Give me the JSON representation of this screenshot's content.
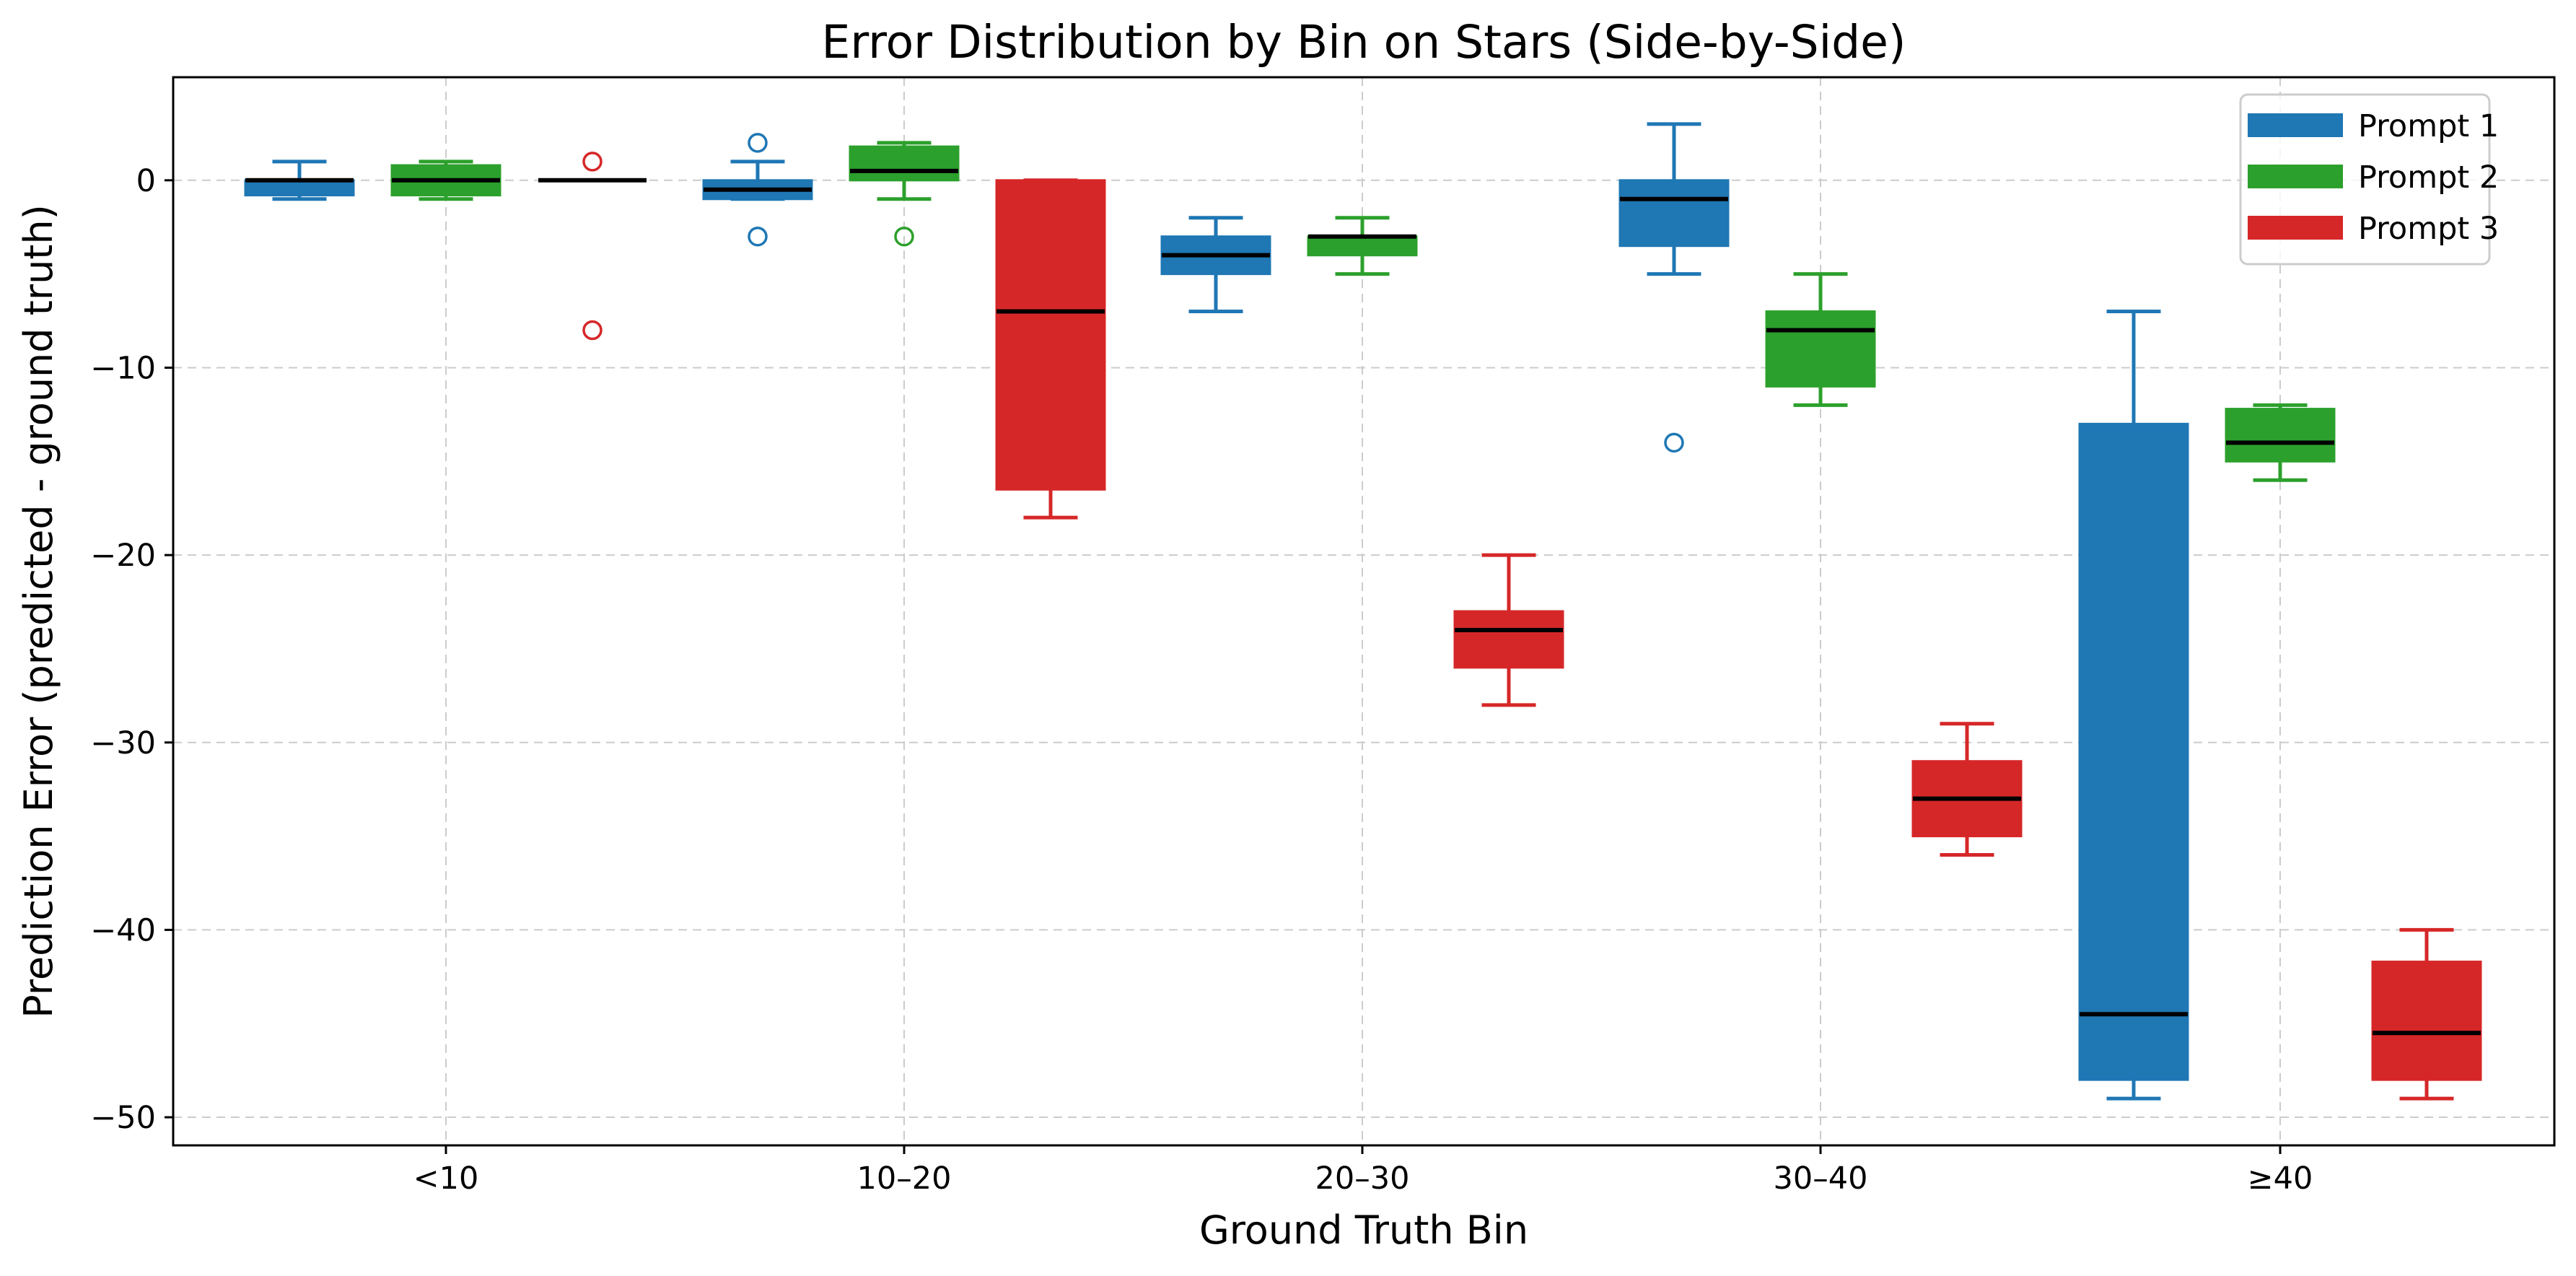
{
  "chart_data": {
    "type": "box",
    "title": "Error Distribution by Bin on Stars (Side-by-Side)",
    "xlabel": "Ground Truth Bin",
    "ylabel": "Prediction Error (predicted - ground truth)",
    "ylim": [
      -51.5,
      5.5
    ],
    "yticks": [
      0,
      -10,
      -20,
      -30,
      -40,
      -50
    ],
    "ytick_labels": [
      "0",
      "−10",
      "−20",
      "−30",
      "−40",
      "−50"
    ],
    "categories": [
      "<10",
      "10–20",
      "20–30",
      "30–40",
      "≥40"
    ],
    "grid": true,
    "legend_position": "top-right",
    "series": [
      {
        "name": "Prompt 1",
        "color": "#1f77b4",
        "boxes": [
          {
            "whisker_low": -1,
            "q1": -0.8,
            "median": 0,
            "q3": 0,
            "whisker_high": 1,
            "outliers": []
          },
          {
            "whisker_low": -1,
            "q1": -1,
            "median": -0.5,
            "q3": 0,
            "whisker_high": 1,
            "outliers": [
              2,
              -3
            ]
          },
          {
            "whisker_low": -7,
            "q1": -5,
            "median": -4,
            "q3": -3,
            "whisker_high": -2,
            "outliers": []
          },
          {
            "whisker_low": -5,
            "q1": -3.5,
            "median": -1,
            "q3": 0,
            "whisker_high": 3,
            "outliers": [
              -14
            ]
          },
          {
            "whisker_low": -49,
            "q1": -48,
            "median": -44.5,
            "q3": -13,
            "whisker_high": -7,
            "outliers": []
          }
        ]
      },
      {
        "name": "Prompt 2",
        "color": "#2ca02c",
        "boxes": [
          {
            "whisker_low": -1,
            "q1": -0.8,
            "median": 0,
            "q3": 0.8,
            "whisker_high": 1,
            "outliers": []
          },
          {
            "whisker_low": -1,
            "q1": 0,
            "median": 0.5,
            "q3": 1.8,
            "whisker_high": 2,
            "outliers": [
              -3
            ]
          },
          {
            "whisker_low": -5,
            "q1": -4,
            "median": -3,
            "q3": -3,
            "whisker_high": -2,
            "outliers": []
          },
          {
            "whisker_low": -12,
            "q1": -11,
            "median": -8,
            "q3": -7,
            "whisker_high": -5,
            "outliers": []
          },
          {
            "whisker_low": -16,
            "q1": -15,
            "median": -14,
            "q3": -12.2,
            "whisker_high": -12,
            "outliers": []
          }
        ]
      },
      {
        "name": "Prompt 3",
        "color": "#d62728",
        "boxes": [
          {
            "whisker_low": 0,
            "q1": 0,
            "median": 0,
            "q3": 0,
            "whisker_high": 0,
            "outliers": [
              1,
              -8
            ]
          },
          {
            "whisker_low": -18,
            "q1": -16.5,
            "median": -7,
            "q3": 0,
            "whisker_high": 0,
            "outliers": []
          },
          {
            "whisker_low": -28,
            "q1": -26,
            "median": -24,
            "q3": -23,
            "whisker_high": -20,
            "outliers": []
          },
          {
            "whisker_low": -36,
            "q1": -35,
            "median": -33,
            "q3": -31,
            "whisker_high": -29,
            "outliers": []
          },
          {
            "whisker_low": -49,
            "q1": -48,
            "median": -45.5,
            "q3": -41.7,
            "whisker_high": -40,
            "outliers": []
          }
        ]
      }
    ]
  }
}
